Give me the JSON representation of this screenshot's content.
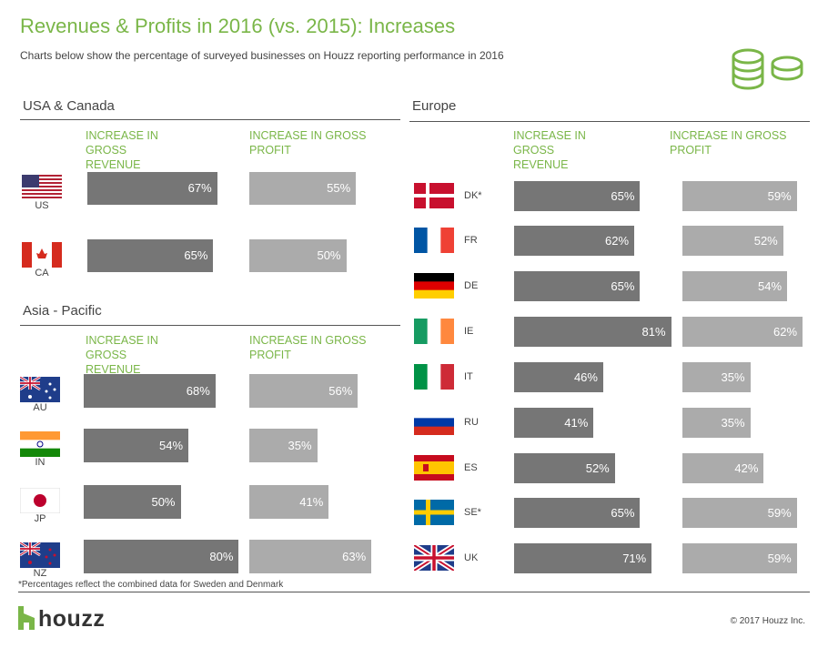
{
  "header": {
    "title": "Revenues & Profits in 2016 (vs. 2015): Increases",
    "subtitle": "Charts below show the percentage of surveyed businesses on Houzz reporting performance in 2016"
  },
  "chart_data": [
    {
      "type": "bar",
      "orientation": "horizontal",
      "title": "USA & Canada",
      "categories": [
        "US",
        "CA"
      ],
      "series": [
        {
          "name": "INCREASE IN GROSS REVENUE",
          "color": "#767676",
          "values": [
            67,
            65
          ],
          "value_labels": [
            "67%",
            "65%"
          ]
        },
        {
          "name": "INCREASE IN GROSS PROFIT",
          "color": "#ababab",
          "values": [
            55,
            50
          ],
          "value_labels": [
            "55%",
            "50%"
          ]
        }
      ]
    },
    {
      "type": "bar",
      "orientation": "horizontal",
      "title": "Asia - Pacific",
      "categories": [
        "AU",
        "IN",
        "JP",
        "NZ"
      ],
      "series": [
        {
          "name": "INCREASE IN GROSS REVENUE",
          "color": "#767676",
          "values": [
            68,
            54,
            50,
            80
          ],
          "value_labels": [
            "68%",
            "54%",
            "50%",
            "80%"
          ]
        },
        {
          "name": "INCREASE IN GROSS PROFIT",
          "color": "#ababab",
          "values": [
            56,
            35,
            41,
            63
          ],
          "value_labels": [
            "56%",
            "35%",
            "41%",
            "63%"
          ]
        }
      ]
    },
    {
      "type": "bar",
      "orientation": "horizontal",
      "title": "Europe",
      "categories": [
        "DK*",
        "FR",
        "DE",
        "IE",
        "IT",
        "RU",
        "ES",
        "SE*",
        "UK"
      ],
      "series": [
        {
          "name": "INCREASE IN GROSS REVENUE",
          "color": "#767676",
          "values": [
            65,
            62,
            65,
            81,
            46,
            41,
            52,
            65,
            71
          ],
          "value_labels": [
            "65%",
            "62%",
            "65%",
            "81%",
            "46%",
            "41%",
            "52%",
            "65%",
            "71%"
          ]
        },
        {
          "name": "INCREASE IN GROSS PROFIT",
          "color": "#ababab",
          "values": [
            59,
            52,
            54,
            62,
            35,
            35,
            42,
            59,
            59
          ],
          "value_labels": [
            "59%",
            "52%",
            "54%",
            "62%",
            "35%",
            "35%",
            "42%",
            "59%",
            "59%"
          ]
        }
      ]
    }
  ],
  "footnote": "*Percentages reflect the combined data for Sweden and Denmark",
  "logo": "houzz",
  "copyright": "© 2017 Houzz Inc."
}
